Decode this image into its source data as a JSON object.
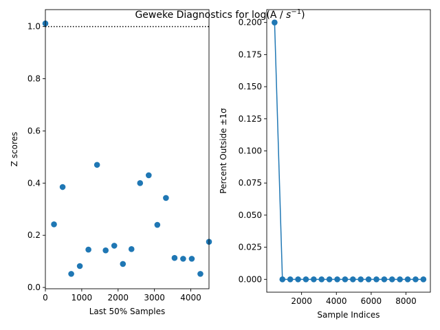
{
  "figure": {
    "title_main": "Geweke Diagnostics for log(A / ",
    "title_sym": "s",
    "title_exp": "−1",
    "title_end": ")"
  },
  "chart_data": [
    {
      "type": "scatter",
      "xlabel": "Last 50% Samples",
      "ylabel": "Z scores",
      "xlim": [
        0,
        4500
      ],
      "ylim": [
        -0.005,
        1.065
      ],
      "xticks": [
        0,
        1000,
        2000,
        3000,
        4000
      ],
      "yticks": [
        0.0,
        0.2,
        0.4,
        0.6,
        0.8,
        1.0
      ],
      "xtick_labels": [
        "0",
        "1000",
        "2000",
        "3000",
        "4000"
      ],
      "ytick_labels": [
        "0.0",
        "0.2",
        "0.4",
        "0.6",
        "0.8",
        "1.0"
      ],
      "reference_line": {
        "y": 1.0,
        "style": "dotted",
        "color": "#000000"
      },
      "color": "#1f77b4",
      "grid": false,
      "x": [
        0,
        237,
        474,
        711,
        947,
        1184,
        1421,
        1658,
        1895,
        2132,
        2368,
        2605,
        2842,
        3079,
        3316,
        3553,
        3789,
        4026,
        4263,
        4500
      ],
      "y": [
        1.012,
        0.242,
        0.385,
        0.052,
        0.082,
        0.145,
        0.47,
        0.142,
        0.16,
        0.09,
        0.147,
        0.4,
        0.43,
        0.24,
        0.343,
        0.113,
        0.11,
        0.11,
        0.052,
        0.175
      ]
    },
    {
      "type": "line",
      "xlabel": "Sample Indices",
      "ylabel": "Percent Outside ±1σ",
      "xlim": [
        0,
        9400
      ],
      "ylim": [
        -0.01,
        0.21
      ],
      "xticks": [
        2000,
        4000,
        6000,
        8000
      ],
      "yticks": [
        0.0,
        0.025,
        0.05,
        0.075,
        0.1,
        0.125,
        0.15,
        0.175,
        0.2
      ],
      "xtick_labels": [
        "2000",
        "4000",
        "6000",
        "8000"
      ],
      "ytick_labels": [
        "0.000",
        "0.025",
        "0.050",
        "0.075",
        "0.100",
        "0.125",
        "0.150",
        "0.175",
        "0.200"
      ],
      "color": "#1f77b4",
      "markers": true,
      "grid": false,
      "x": [
        450,
        900,
        1350,
        1800,
        2250,
        2700,
        3150,
        3600,
        4050,
        4500,
        4950,
        5400,
        5850,
        6300,
        6750,
        7200,
        7650,
        8100,
        8550,
        9000
      ],
      "y": [
        0.2,
        0,
        0,
        0,
        0,
        0,
        0,
        0,
        0,
        0,
        0,
        0,
        0,
        0,
        0,
        0,
        0,
        0,
        0,
        0
      ]
    }
  ]
}
